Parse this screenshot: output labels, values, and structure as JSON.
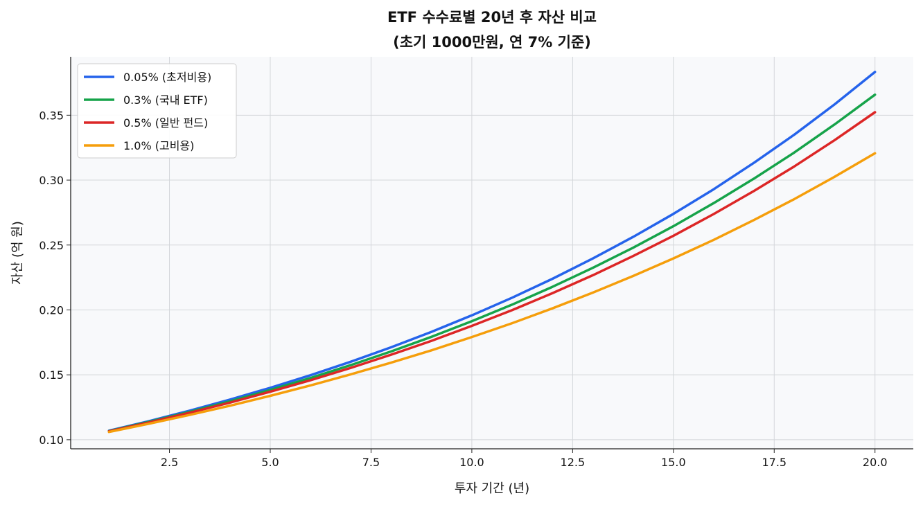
{
  "chart_data": {
    "type": "line",
    "title_line1": "ETF 수수료별 20년 후 자산 비교",
    "title_line2": "(초기 1000만원, 연 7% 기준)",
    "xlabel": "투자 기간 (년)",
    "ylabel": "자산 (억 원)",
    "xlim": [
      0.05,
      20.95
    ],
    "ylim": [
      0.093,
      0.395
    ],
    "xticks": [
      2.5,
      5.0,
      7.5,
      10.0,
      12.5,
      15.0,
      17.5,
      20.0
    ],
    "xtick_labels": [
      "2.5",
      "5.0",
      "7.5",
      "10.0",
      "12.5",
      "15.0",
      "17.5",
      "20.0"
    ],
    "yticks": [
      0.1,
      0.15,
      0.2,
      0.25,
      0.3,
      0.35
    ],
    "ytick_labels": [
      "0.10",
      "0.15",
      "0.20",
      "0.25",
      "0.30",
      "0.35"
    ],
    "grid": true,
    "legend_position": "top-left",
    "background": "#f8f9fb",
    "x": [
      1,
      2,
      3,
      4,
      5,
      6,
      7,
      8,
      9,
      10,
      11,
      12,
      13,
      14,
      15,
      16,
      17,
      18,
      19,
      20
    ],
    "series": [
      {
        "name": "0.05% (초저비용)",
        "color": "#2563eb",
        "values": [
          0.107,
          0.1144,
          0.1224,
          0.1309,
          0.14,
          0.1497,
          0.1601,
          0.1712,
          0.1831,
          0.1958,
          0.2094,
          0.224,
          0.2396,
          0.2562,
          0.274,
          0.293,
          0.3134,
          0.3351,
          0.3584,
          0.3833
        ]
      },
      {
        "name": "0.3% (국내 ETF)",
        "color": "#16a34a",
        "values": [
          0.1067,
          0.1139,
          0.1215,
          0.1296,
          0.1383,
          0.1476,
          0.1575,
          0.168,
          0.1793,
          0.1913,
          0.2041,
          0.2178,
          0.2324,
          0.2479,
          0.2645,
          0.2823,
          0.3012,
          0.3213,
          0.3429,
          0.3658
        ]
      },
      {
        "name": "0.5% (일반 펀드)",
        "color": "#dc2626",
        "values": [
          0.1065,
          0.1134,
          0.1208,
          0.1286,
          0.137,
          0.1459,
          0.1554,
          0.1655,
          0.1762,
          0.1877,
          0.1999,
          0.2129,
          0.2267,
          0.2415,
          0.2571,
          0.2739,
          0.2917,
          0.3106,
          0.3308,
          0.3523
        ]
      },
      {
        "name": "1.0% (고비용)",
        "color": "#f59e0b",
        "values": [
          0.106,
          0.1124,
          0.1191,
          0.1262,
          0.1338,
          0.1419,
          0.1504,
          0.1594,
          0.1689,
          0.1791,
          0.1898,
          0.2012,
          0.2133,
          0.2261,
          0.2397,
          0.254,
          0.2693,
          0.2854,
          0.3026,
          0.3207
        ]
      }
    ]
  }
}
